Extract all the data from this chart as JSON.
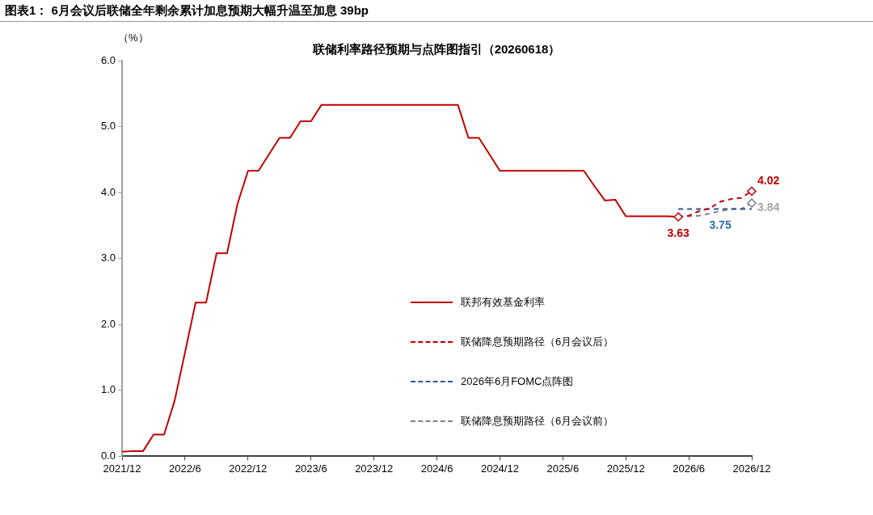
{
  "chart_data": {
    "type": "line",
    "title": "图表1： 6月会议后联储全年剩余累计加息预期大幅升温至加息 39bp",
    "subtitle": "联储利率路径预期与点阵图指引（20260618）",
    "ylabel": "（%）",
    "categories": [
      "2021/12",
      null,
      null,
      null,
      null,
      null,
      "2022/6",
      null,
      null,
      null,
      null,
      null,
      "2022/12",
      null,
      null,
      null,
      null,
      null,
      "2023/6",
      null,
      null,
      null,
      null,
      null,
      "2023/12",
      null,
      null,
      null,
      null,
      null,
      "2024/6",
      null,
      null,
      null,
      null,
      null,
      "2024/12",
      null,
      null,
      null,
      null,
      null,
      "2025/6",
      null,
      null,
      null,
      null,
      null,
      "2025/12",
      null,
      null,
      null,
      null,
      null,
      "2026/6",
      null,
      null,
      null,
      null,
      null,
      "2026/12"
    ],
    "ylim": [
      0,
      6
    ],
    "yticks": [
      {
        "value": 0,
        "label": "0.0"
      },
      {
        "value": 1,
        "label": "1.0"
      },
      {
        "value": 2,
        "label": "2.0"
      },
      {
        "value": 3,
        "label": "3.0"
      },
      {
        "value": 4,
        "label": "4.0"
      },
      {
        "value": 5,
        "label": "5.0"
      },
      {
        "value": 6,
        "label": "6.0"
      }
    ],
    "grid": false,
    "legend": "bottom right",
    "series": [
      {
        "name": "联邦有效基金利率",
        "color": "#c00000",
        "line_style": "solid",
        "values": [
          0.07,
          0.08,
          0.08,
          0.33,
          0.33,
          0.84,
          1.58,
          2.33,
          2.33,
          3.08,
          3.08,
          3.83,
          4.33,
          4.33,
          4.58,
          4.83,
          4.83,
          5.08,
          5.08,
          5.33,
          5.33,
          5.33,
          5.33,
          5.33,
          5.33,
          5.33,
          5.33,
          5.33,
          5.33,
          5.33,
          5.33,
          5.33,
          5.33,
          4.83,
          4.83,
          4.58,
          4.33,
          4.33,
          4.33,
          4.33,
          4.33,
          4.33,
          4.33,
          4.33,
          4.33,
          4.1,
          3.88,
          3.89,
          3.64,
          3.64,
          3.64,
          3.64,
          3.64,
          3.63,
          null,
          null,
          null,
          null,
          null,
          null,
          null
        ],
        "value_labels": [
          null,
          null,
          null,
          null,
          null,
          null,
          null,
          null,
          null,
          null,
          null,
          null,
          null,
          null,
          null,
          null,
          null,
          null,
          null,
          null,
          null,
          null,
          null,
          null,
          null,
          null,
          null,
          null,
          null,
          null,
          null,
          null,
          null,
          null,
          null,
          null,
          null,
          null,
          null,
          null,
          null,
          null,
          null,
          null,
          null,
          null,
          null,
          null,
          null,
          null,
          null,
          null,
          null,
          "3.63",
          null,
          null,
          null,
          null,
          null,
          null,
          null
        ]
      },
      {
        "name": "联储降息预期路径（6月会议后）",
        "color": "#c00000",
        "line_style": "dashed",
        "values": [
          null,
          null,
          null,
          null,
          null,
          null,
          null,
          null,
          null,
          null,
          null,
          null,
          null,
          null,
          null,
          null,
          null,
          null,
          null,
          null,
          null,
          null,
          null,
          null,
          null,
          null,
          null,
          null,
          null,
          null,
          null,
          null,
          null,
          null,
          null,
          null,
          null,
          null,
          null,
          null,
          null,
          null,
          null,
          null,
          null,
          null,
          null,
          null,
          null,
          null,
          null,
          null,
          null,
          3.63,
          3.65,
          3.72,
          3.76,
          3.86,
          3.9,
          3.92,
          4.02
        ],
        "value_labels": [
          null,
          null,
          null,
          null,
          null,
          null,
          null,
          null,
          null,
          null,
          null,
          null,
          null,
          null,
          null,
          null,
          null,
          null,
          null,
          null,
          null,
          null,
          null,
          null,
          null,
          null,
          null,
          null,
          null,
          null,
          null,
          null,
          null,
          null,
          null,
          null,
          null,
          null,
          null,
          null,
          null,
          null,
          null,
          null,
          null,
          null,
          null,
          null,
          null,
          null,
          null,
          null,
          null,
          null,
          null,
          null,
          null,
          null,
          null,
          null,
          "4.02"
        ]
      },
      {
        "name": "2026年6月FOMC点阵图",
        "color": "#2f5597",
        "line_style": "dashed",
        "values": [
          null,
          null,
          null,
          null,
          null,
          null,
          null,
          null,
          null,
          null,
          null,
          null,
          null,
          null,
          null,
          null,
          null,
          null,
          null,
          null,
          null,
          null,
          null,
          null,
          null,
          null,
          null,
          null,
          null,
          null,
          null,
          null,
          null,
          null,
          null,
          null,
          null,
          null,
          null,
          null,
          null,
          null,
          null,
          null,
          null,
          null,
          null,
          null,
          null,
          null,
          null,
          null,
          null,
          3.75,
          3.75,
          3.75,
          3.75,
          3.75,
          3.75,
          3.75,
          3.75
        ],
        "value_labels": [
          null,
          null,
          null,
          null,
          null,
          null,
          null,
          null,
          null,
          null,
          null,
          null,
          null,
          null,
          null,
          null,
          null,
          null,
          null,
          null,
          null,
          null,
          null,
          null,
          null,
          null,
          null,
          null,
          null,
          null,
          null,
          null,
          null,
          null,
          null,
          null,
          null,
          null,
          null,
          null,
          null,
          null,
          null,
          null,
          null,
          null,
          null,
          null,
          null,
          null,
          null,
          null,
          null,
          null,
          null,
          null,
          null,
          "3.75",
          null,
          null,
          null
        ]
      },
      {
        "name": "联储降息预期路径（6月会议前）",
        "color": "#808080",
        "line_style": "dashed",
        "values": [
          null,
          null,
          null,
          null,
          null,
          null,
          null,
          null,
          null,
          null,
          null,
          null,
          null,
          null,
          null,
          null,
          null,
          null,
          null,
          null,
          null,
          null,
          null,
          null,
          null,
          null,
          null,
          null,
          null,
          null,
          null,
          null,
          null,
          null,
          null,
          null,
          null,
          null,
          null,
          null,
          null,
          null,
          null,
          null,
          null,
          null,
          null,
          null,
          null,
          null,
          null,
          null,
          null,
          3.63,
          3.64,
          3.65,
          3.68,
          3.72,
          3.75,
          3.75,
          3.84
        ],
        "value_labels": [
          null,
          null,
          null,
          null,
          null,
          null,
          null,
          null,
          null,
          null,
          null,
          null,
          null,
          null,
          null,
          null,
          null,
          null,
          null,
          null,
          null,
          null,
          null,
          null,
          null,
          null,
          null,
          null,
          null,
          null,
          null,
          null,
          null,
          null,
          null,
          null,
          null,
          null,
          null,
          null,
          null,
          null,
          null,
          null,
          null,
          null,
          null,
          null,
          null,
          null,
          null,
          null,
          null,
          null,
          null,
          null,
          null,
          null,
          null,
          null,
          "3.84"
        ]
      }
    ]
  }
}
